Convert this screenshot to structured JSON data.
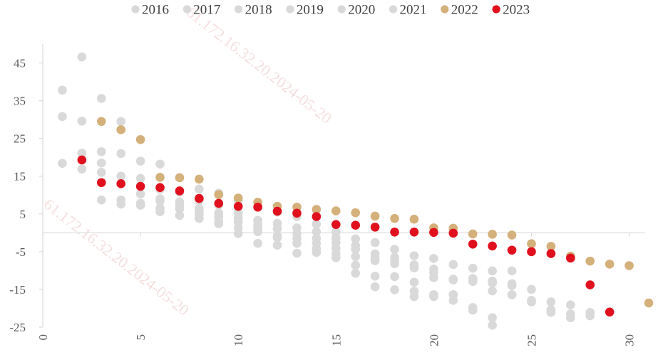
{
  "chart_data": {
    "type": "scatter",
    "title": "",
    "xlabel": "",
    "ylabel": "",
    "xlim": [
      0,
      31
    ],
    "ylim": [
      -25,
      50
    ],
    "x_ticks": [
      0,
      5,
      10,
      15,
      20,
      25,
      30
    ],
    "y_ticks": [
      -25,
      -15,
      -5,
      5,
      15,
      25,
      35,
      45
    ],
    "x_tick_labels": [
      "0",
      "5",
      "10",
      "15",
      "20",
      "25",
      "30"
    ],
    "y_tick_labels": [
      "-25",
      "-15",
      "-5",
      "5",
      "15",
      "25",
      "35",
      "45"
    ],
    "grid": false,
    "legend_position": "top",
    "watermark": "61.172.16.32.20.2024-05-20",
    "series": [
      {
        "name": "2016",
        "color": "#d9d9d9",
        "points": [
          [
            1,
            37.8
          ],
          [
            2,
            46.6
          ],
          [
            3,
            35.6
          ],
          [
            4,
            29.5
          ],
          [
            5,
            19.0
          ],
          [
            6,
            18.2
          ],
          [
            7,
            14.6
          ],
          [
            8,
            11.6
          ],
          [
            9,
            10.5
          ],
          [
            10,
            8.5
          ],
          [
            11,
            6.9
          ],
          [
            12,
            5.5
          ],
          [
            13,
            4.3
          ],
          [
            14,
            2.3
          ],
          [
            15,
            0.2
          ],
          [
            16,
            -1.6
          ],
          [
            17,
            -2.6
          ],
          [
            18,
            -4.4
          ],
          [
            19,
            -6.1
          ],
          [
            20,
            -6.8
          ],
          [
            21,
            -8.4
          ],
          [
            22,
            -9.4
          ],
          [
            23,
            -10.1
          ],
          [
            24,
            -10.1
          ],
          [
            25,
            -15.0
          ],
          [
            26,
            -18.3
          ],
          [
            27,
            -19.1
          ],
          [
            28,
            -21.1
          ],
          [
            29,
            -21.0
          ]
        ]
      },
      {
        "name": "2017",
        "color": "#d9d9d9",
        "points": [
          [
            1,
            30.8
          ],
          [
            2,
            29.6
          ],
          [
            3,
            21.5
          ],
          [
            4,
            21.0
          ],
          [
            5,
            14.4
          ],
          [
            6,
            11.5
          ],
          [
            7,
            10.8
          ],
          [
            8,
            8.5
          ],
          [
            9,
            7.3
          ],
          [
            10,
            5.3
          ],
          [
            11,
            3.3
          ],
          [
            12,
            2.5
          ],
          [
            13,
            1.3
          ],
          [
            14,
            0.3
          ],
          [
            15,
            -1.4
          ],
          [
            16,
            -3.4
          ],
          [
            17,
            -5.6
          ],
          [
            18,
            -6.5
          ],
          [
            19,
            -8.5
          ],
          [
            20,
            -10.5
          ],
          [
            21,
            -12.5
          ],
          [
            22,
            -12.9
          ],
          [
            23,
            -13.3
          ],
          [
            24,
            -14.0
          ],
          [
            25,
            -18.3
          ],
          [
            26,
            -20.4
          ],
          [
            27,
            -21.5
          ],
          [
            28,
            -22.0
          ]
        ]
      },
      {
        "name": "2018",
        "color": "#d9d9d9",
        "points": [
          [
            1,
            18.4
          ],
          [
            2,
            21.1
          ],
          [
            3,
            18.5
          ],
          [
            4,
            15.0
          ],
          [
            5,
            10.3
          ],
          [
            6,
            8.4
          ],
          [
            7,
            8.2
          ],
          [
            8,
            6.5
          ],
          [
            9,
            5.2
          ],
          [
            10,
            4.0
          ],
          [
            11,
            2.1
          ],
          [
            12,
            1.1
          ],
          [
            13,
            -0.2
          ],
          [
            14,
            -1.5
          ],
          [
            15,
            -2.6
          ],
          [
            16,
            -4.4
          ],
          [
            17,
            -6.6
          ],
          [
            18,
            -7.5
          ],
          [
            19,
            -9.3
          ],
          [
            20,
            -11.9
          ],
          [
            21,
            -16.4
          ],
          [
            22,
            -19.8
          ],
          [
            23,
            -22.5
          ],
          [
            24,
            -16.4
          ],
          [
            26,
            -21.1
          ],
          [
            27,
            -22.5
          ]
        ]
      },
      {
        "name": "2019",
        "color": "#d9d9d9",
        "points": [
          [
            2,
            16.9
          ],
          [
            3,
            16.0
          ],
          [
            4,
            8.7
          ],
          [
            5,
            7.8
          ],
          [
            6,
            6.5
          ],
          [
            7,
            6.3
          ],
          [
            8,
            4.8
          ],
          [
            9,
            3.0
          ],
          [
            10,
            1.3
          ],
          [
            11,
            0.3
          ],
          [
            12,
            -0.8
          ],
          [
            13,
            -1.5
          ],
          [
            14,
            -2.8
          ],
          [
            15,
            -4.1
          ],
          [
            16,
            -6.3
          ],
          [
            17,
            -7.4
          ],
          [
            18,
            -8.2
          ],
          [
            19,
            -13.1
          ],
          [
            20,
            -16.4
          ],
          [
            21,
            -17.9
          ],
          [
            22,
            -20.5
          ],
          [
            23,
            -15.4
          ],
          [
            24,
            -13.5
          ]
        ]
      },
      {
        "name": "2020",
        "color": "#d9d9d9",
        "points": [
          [
            3,
            8.7
          ],
          [
            4,
            7.6
          ],
          [
            5,
            7.3
          ],
          [
            6,
            5.6
          ],
          [
            7,
            4.6
          ],
          [
            8,
            3.8
          ],
          [
            9,
            2.4
          ],
          [
            10,
            -0.2
          ],
          [
            11,
            -2.8
          ],
          [
            12,
            -3.3
          ],
          [
            13,
            -5.4
          ],
          [
            14,
            -4.2
          ],
          [
            15,
            -5.6
          ],
          [
            16,
            -8.6
          ],
          [
            17,
            -11.5
          ],
          [
            18,
            -11.6
          ],
          [
            19,
            -16.9
          ],
          [
            20,
            -16.9
          ],
          [
            21,
            -16.4
          ],
          [
            23,
            -24.5
          ]
        ]
      },
      {
        "name": "2021",
        "color": "#d9d9d9",
        "points": [
          [
            5,
            12.4
          ],
          [
            6,
            9.0
          ],
          [
            7,
            7.3
          ],
          [
            8,
            5.6
          ],
          [
            9,
            4.2
          ],
          [
            10,
            2.8
          ],
          [
            11,
            1.3
          ],
          [
            12,
            -1.3
          ],
          [
            13,
            -2.8
          ],
          [
            14,
            -5.2
          ],
          [
            15,
            -6.6
          ],
          [
            16,
            -10.7
          ],
          [
            17,
            -14.3
          ],
          [
            18,
            -15.1
          ],
          [
            19,
            -15.5
          ],
          [
            20,
            -9.6
          ],
          [
            21,
            -12.3
          ],
          [
            22,
            -12.1
          ],
          [
            23,
            -12.8
          ],
          [
            24,
            -16.4
          ],
          [
            25,
            -17.9
          ]
        ]
      },
      {
        "name": "2022",
        "color": "#d4b07a",
        "points": [
          [
            3,
            29.5
          ],
          [
            4,
            27.3
          ],
          [
            5,
            24.7
          ],
          [
            6,
            14.7
          ],
          [
            7,
            14.6
          ],
          [
            8,
            14.2
          ],
          [
            9,
            10.1
          ],
          [
            10,
            9.2
          ],
          [
            11,
            8.1
          ],
          [
            12,
            7.0
          ],
          [
            13,
            6.8
          ],
          [
            14,
            6.2
          ],
          [
            15,
            5.8
          ],
          [
            16,
            5.3
          ],
          [
            17,
            4.4
          ],
          [
            18,
            3.8
          ],
          [
            19,
            3.6
          ],
          [
            20,
            1.3
          ],
          [
            21,
            1.2
          ],
          [
            22,
            -0.3
          ],
          [
            23,
            -0.4
          ],
          [
            24,
            -0.6
          ],
          [
            25,
            -2.9
          ],
          [
            26,
            -3.6
          ],
          [
            27,
            -6.2
          ],
          [
            28,
            -7.5
          ],
          [
            29,
            -8.3
          ],
          [
            30,
            -8.7
          ],
          [
            31,
            -18.6
          ]
        ]
      },
      {
        "name": "2023",
        "color": "#e0101e",
        "points": [
          [
            2,
            19.3
          ],
          [
            3,
            13.3
          ],
          [
            4,
            13.0
          ],
          [
            5,
            12.3
          ],
          [
            6,
            12.0
          ],
          [
            7,
            11.1
          ],
          [
            8,
            9.1
          ],
          [
            9,
            7.8
          ],
          [
            10,
            7.0
          ],
          [
            11,
            6.8
          ],
          [
            12,
            5.7
          ],
          [
            13,
            5.2
          ],
          [
            14,
            4.3
          ],
          [
            15,
            2.2
          ],
          [
            16,
            2.0
          ],
          [
            17,
            1.5
          ],
          [
            18,
            0.2
          ],
          [
            19,
            0.2
          ],
          [
            20,
            0.1
          ],
          [
            21,
            -0.1
          ],
          [
            22,
            -3.0
          ],
          [
            23,
            -3.5
          ],
          [
            24,
            -4.6
          ],
          [
            25,
            -5.0
          ],
          [
            26,
            -5.5
          ],
          [
            27,
            -6.7
          ],
          [
            28,
            -13.8
          ],
          [
            29,
            -21.0
          ]
        ]
      }
    ]
  }
}
